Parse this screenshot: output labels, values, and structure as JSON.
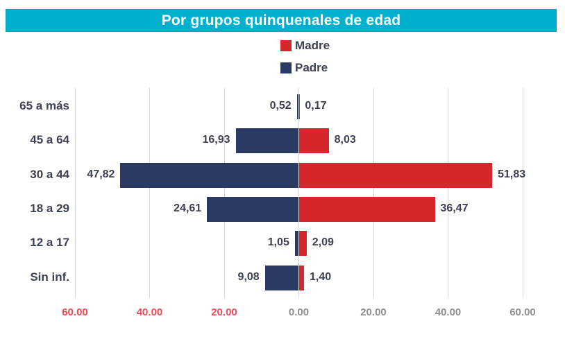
{
  "header": {
    "title": "Por grupos quinquenales de edad"
  },
  "legend": {
    "items": [
      {
        "label": "Madre",
        "color": "#d5262c"
      },
      {
        "label": "Padre",
        "color": "#2b3a63"
      }
    ]
  },
  "chart_data": {
    "type": "bar",
    "subtype": "diverging-horizontal",
    "title": "Por grupos quinquenales de edad",
    "categories": [
      "65 a más",
      "45 a 64",
      "30 a 44",
      "18 a 29",
      "12 a 17",
      "Sin inf."
    ],
    "series": [
      {
        "name": "Padre",
        "side": "left",
        "color": "#2b3a63",
        "values": [
          0.52,
          16.93,
          47.82,
          24.61,
          1.05,
          9.08
        ],
        "labels": [
          "0,52",
          "16,93",
          "47,82",
          "24,61",
          "1,05",
          "9,08"
        ]
      },
      {
        "name": "Madre",
        "side": "right",
        "color": "#d5262c",
        "values": [
          0.17,
          8.03,
          51.83,
          36.47,
          2.09,
          1.4
        ],
        "labels": [
          "0,17",
          "8,03",
          "51,83",
          "36,47",
          "2,09",
          "1,40"
        ]
      }
    ],
    "x_axis": {
      "xlim": [
        -60,
        60
      ],
      "grid": true,
      "ticks": [
        {
          "label": "60.00",
          "value": -60,
          "color": "#ee4a57"
        },
        {
          "label": "40.00",
          "value": -40,
          "color": "#ee4a57"
        },
        {
          "label": "20.00",
          "value": -20,
          "color": "#ee4a57"
        },
        {
          "label": "0.00",
          "value": 0,
          "color": "#8e8e93"
        },
        {
          "label": "20.00",
          "value": 20,
          "color": "#8e8e93"
        },
        {
          "label": "40.00",
          "value": 40,
          "color": "#8e8e93"
        },
        {
          "label": "60.00",
          "value": 60,
          "color": "#8e8e93"
        }
      ]
    },
    "colors": {
      "title_bar": "#00b1ce",
      "title_text": "#ffffff",
      "gridline": "#d7d7d7",
      "data_label": "#3c4153",
      "left_tick": "#ee4a57",
      "right_tick": "#8e8e93"
    }
  }
}
